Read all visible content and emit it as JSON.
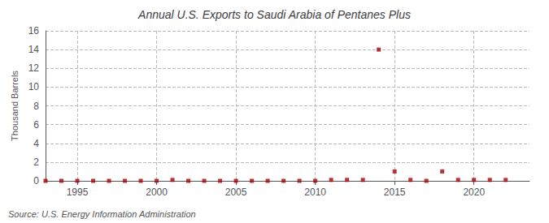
{
  "chart_data": {
    "type": "scatter",
    "title": "Annual U.S. Exports to Saudi Arabia of Pentanes Plus",
    "ylabel": "Thousand Barrels",
    "annotation": "Source: U.S. Energy Information Administration",
    "x": [
      1993,
      1994,
      1995,
      1996,
      1997,
      1998,
      1999,
      2000,
      2001,
      2002,
      2003,
      2004,
      2005,
      2006,
      2007,
      2008,
      2009,
      2010,
      2011,
      2012,
      2013,
      2014,
      2015,
      2016,
      2017,
      2018,
      2019,
      2020,
      2021,
      2022
    ],
    "values": [
      0,
      0,
      0,
      0,
      0,
      0,
      0,
      0,
      0.1,
      0,
      0,
      0,
      0,
      0,
      0,
      0,
      0,
      0,
      0.1,
      0.1,
      0.1,
      14,
      1,
      0.1,
      0,
      1,
      0.1,
      0.1,
      0.1,
      0.1
    ],
    "color": "#aa0000",
    "marker": "square",
    "xlim": [
      1993,
      2023.5
    ],
    "xticks": [
      1995,
      2000,
      2005,
      2010,
      2015,
      2020
    ],
    "ylim": [
      0,
      16
    ],
    "yticks": [
      0,
      2,
      4,
      6,
      8,
      10,
      12,
      14,
      16
    ],
    "grid": true
  }
}
